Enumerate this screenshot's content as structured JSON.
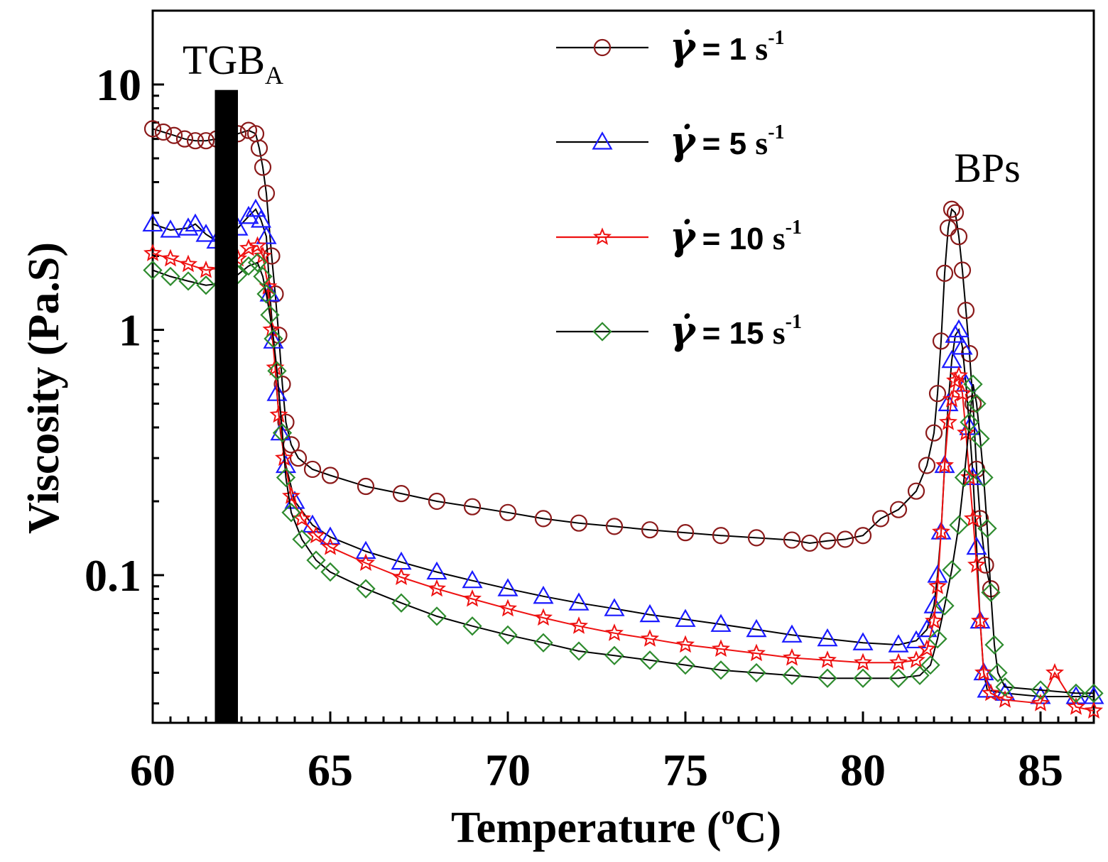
{
  "chart_data": {
    "type": "scatter",
    "title": "",
    "xlabel": "Temperature (",
    "xlabel_sup": "o",
    "xlabel_tail": "C)",
    "ylabel": "Viscosity (Pa.S)",
    "xlim": [
      60,
      86.5
    ],
    "ylim": [
      0.025,
      20
    ],
    "yscale": "log",
    "x_ticks": [
      60,
      65,
      70,
      75,
      80,
      85
    ],
    "x_tick_labels": [
      "60",
      "65",
      "70",
      "75",
      "80",
      "85"
    ],
    "y_ticks": [
      0.1,
      1,
      10
    ],
    "y_tick_labels": [
      "0.1",
      "1",
      "10"
    ],
    "grid": false,
    "legend_position": "top-right",
    "annotations": [
      {
        "text": "TGB",
        "subscript": "A",
        "x": 62.0
      },
      {
        "text": "BPs",
        "x": 83.5
      }
    ],
    "tgba_bar": {
      "x_from": 61.75,
      "x_to": 62.4,
      "y_top": 9.5
    },
    "series": [
      {
        "name": "γ̇ = 1 s⁻¹",
        "label_value": "= 1",
        "marker": "circle",
        "color": "#8b1a1a",
        "points": [
          [
            60,
            6.6
          ],
          [
            60.3,
            6.4
          ],
          [
            60.6,
            6.2
          ],
          [
            60.9,
            6.0
          ],
          [
            61.2,
            5.9
          ],
          [
            61.5,
            5.9
          ],
          [
            61.8,
            6.0
          ],
          [
            62.1,
            6.1
          ],
          [
            62.4,
            6.3
          ],
          [
            62.7,
            6.5
          ],
          [
            62.9,
            6.3
          ],
          [
            63.0,
            5.5
          ],
          [
            63.1,
            4.6
          ],
          [
            63.2,
            3.6
          ],
          [
            63.35,
            2.0
          ],
          [
            63.45,
            1.4
          ],
          [
            63.55,
            0.95
          ],
          [
            63.65,
            0.6
          ],
          [
            63.75,
            0.42
          ],
          [
            63.9,
            0.34
          ],
          [
            64.1,
            0.3
          ],
          [
            64.5,
            0.27
          ],
          [
            65,
            0.255
          ],
          [
            66,
            0.23
          ],
          [
            67,
            0.215
          ],
          [
            68,
            0.2
          ],
          [
            69,
            0.19
          ],
          [
            70,
            0.18
          ],
          [
            71,
            0.17
          ],
          [
            72,
            0.163
          ],
          [
            73,
            0.158
          ],
          [
            74,
            0.153
          ],
          [
            75,
            0.149
          ],
          [
            76,
            0.145
          ],
          [
            77,
            0.142
          ],
          [
            78,
            0.139
          ],
          [
            78.5,
            0.135
          ],
          [
            79,
            0.138
          ],
          [
            79.5,
            0.14
          ],
          [
            80,
            0.145
          ],
          [
            80.5,
            0.17
          ],
          [
            81,
            0.185
          ],
          [
            81.5,
            0.22
          ],
          [
            81.8,
            0.28
          ],
          [
            82.0,
            0.38
          ],
          [
            82.1,
            0.55
          ],
          [
            82.2,
            0.9
          ],
          [
            82.3,
            1.7
          ],
          [
            82.4,
            2.6
          ],
          [
            82.5,
            3.1
          ],
          [
            82.6,
            3.0
          ],
          [
            82.7,
            2.4
          ],
          [
            82.8,
            1.75
          ],
          [
            82.9,
            1.2
          ],
          [
            83.0,
            0.8
          ],
          [
            83.1,
            0.5
          ],
          [
            83.2,
            0.27
          ],
          [
            83.3,
            0.17
          ],
          [
            83.45,
            0.11
          ],
          [
            83.6,
            0.088
          ]
        ]
      },
      {
        "name": "γ̇ = 5 s⁻¹",
        "label_value": "= 5",
        "marker": "triangle",
        "color": "#1a1aff",
        "points": [
          [
            60,
            2.7
          ],
          [
            60.5,
            2.55
          ],
          [
            61,
            2.6
          ],
          [
            61.2,
            2.7
          ],
          [
            61.5,
            2.45
          ],
          [
            61.8,
            2.3
          ],
          [
            62.1,
            2.35
          ],
          [
            62.4,
            2.6
          ],
          [
            62.7,
            2.9
          ],
          [
            62.9,
            3.1
          ],
          [
            63.05,
            2.8
          ],
          [
            63.2,
            2.4
          ],
          [
            63.3,
            1.4
          ],
          [
            63.4,
            0.9
          ],
          [
            63.5,
            0.55
          ],
          [
            63.6,
            0.38
          ],
          [
            63.75,
            0.28
          ],
          [
            64,
            0.2
          ],
          [
            64.5,
            0.16
          ],
          [
            65,
            0.143
          ],
          [
            66,
            0.125
          ],
          [
            67,
            0.113
          ],
          [
            68,
            0.103
          ],
          [
            69,
            0.095
          ],
          [
            70,
            0.088
          ],
          [
            71,
            0.082
          ],
          [
            72,
            0.077
          ],
          [
            73,
            0.073
          ],
          [
            74,
            0.069
          ],
          [
            75,
            0.066
          ],
          [
            76,
            0.063
          ],
          [
            77,
            0.06
          ],
          [
            78,
            0.057
          ],
          [
            79,
            0.055
          ],
          [
            80,
            0.053
          ],
          [
            81,
            0.052
          ],
          [
            81.5,
            0.054
          ],
          [
            81.8,
            0.06
          ],
          [
            82.0,
            0.075
          ],
          [
            82.1,
            0.1
          ],
          [
            82.2,
            0.15
          ],
          [
            82.3,
            0.28
          ],
          [
            82.4,
            0.5
          ],
          [
            82.5,
            0.75
          ],
          [
            82.6,
            0.95
          ],
          [
            82.7,
            1.0
          ],
          [
            82.8,
            0.85
          ],
          [
            82.9,
            0.6
          ],
          [
            83.0,
            0.4
          ],
          [
            83.1,
            0.25
          ],
          [
            83.2,
            0.13
          ],
          [
            83.3,
            0.065
          ],
          [
            83.4,
            0.04
          ],
          [
            83.5,
            0.034
          ],
          [
            84,
            0.033
          ],
          [
            85,
            0.032
          ],
          [
            86,
            0.032
          ],
          [
            86.5,
            0.032
          ]
        ]
      },
      {
        "name": "γ̇ = 10 s⁻¹",
        "label_value": "= 10",
        "marker": "star",
        "color": "#ee1111",
        "points": [
          [
            60,
            2.05
          ],
          [
            60.5,
            1.95
          ],
          [
            61,
            1.85
          ],
          [
            61.5,
            1.75
          ],
          [
            62,
            1.8
          ],
          [
            62.4,
            1.95
          ],
          [
            62.7,
            2.15
          ],
          [
            62.95,
            2.2
          ],
          [
            63.1,
            2.0
          ],
          [
            63.25,
            1.5
          ],
          [
            63.35,
            1.0
          ],
          [
            63.45,
            0.7
          ],
          [
            63.55,
            0.45
          ],
          [
            63.7,
            0.3
          ],
          [
            63.9,
            0.21
          ],
          [
            64.2,
            0.17
          ],
          [
            64.6,
            0.145
          ],
          [
            65,
            0.13
          ],
          [
            66,
            0.112
          ],
          [
            67,
            0.098
          ],
          [
            68,
            0.088
          ],
          [
            69,
            0.08
          ],
          [
            70,
            0.073
          ],
          [
            71,
            0.067
          ],
          [
            72,
            0.062
          ],
          [
            73,
            0.058
          ],
          [
            74,
            0.055
          ],
          [
            75,
            0.052
          ],
          [
            76,
            0.05
          ],
          [
            77,
            0.048
          ],
          [
            78,
            0.046
          ],
          [
            79,
            0.045
          ],
          [
            80,
            0.044
          ],
          [
            81,
            0.044
          ],
          [
            81.5,
            0.045
          ],
          [
            81.8,
            0.05
          ],
          [
            82,
            0.065
          ],
          [
            82.1,
            0.09
          ],
          [
            82.2,
            0.15
          ],
          [
            82.3,
            0.28
          ],
          [
            82.4,
            0.42
          ],
          [
            82.5,
            0.52
          ],
          [
            82.6,
            0.62
          ],
          [
            82.7,
            0.65
          ],
          [
            82.8,
            0.55
          ],
          [
            82.9,
            0.38
          ],
          [
            83,
            0.25
          ],
          [
            83.1,
            0.17
          ],
          [
            83.2,
            0.11
          ],
          [
            83.3,
            0.065
          ],
          [
            83.4,
            0.04
          ],
          [
            83.6,
            0.033
          ],
          [
            84,
            0.031
          ],
          [
            85,
            0.03
          ],
          [
            85.4,
            0.04
          ],
          [
            86,
            0.029
          ],
          [
            86.5,
            0.028
          ]
        ]
      },
      {
        "name": "γ̇ = 15 s⁻¹",
        "label_value": "= 15",
        "marker": "diamond",
        "color": "#2e8b2e",
        "points": [
          [
            60,
            1.75
          ],
          [
            60.5,
            1.65
          ],
          [
            61,
            1.58
          ],
          [
            61.5,
            1.52
          ],
          [
            62,
            1.55
          ],
          [
            62.4,
            1.68
          ],
          [
            62.7,
            1.82
          ],
          [
            62.95,
            1.88
          ],
          [
            63.1,
            1.65
          ],
          [
            63.2,
            1.4
          ],
          [
            63.3,
            1.15
          ],
          [
            63.4,
            0.92
          ],
          [
            63.5,
            0.68
          ],
          [
            63.65,
            0.38
          ],
          [
            63.75,
            0.25
          ],
          [
            63.9,
            0.18
          ],
          [
            64.2,
            0.14
          ],
          [
            64.6,
            0.115
          ],
          [
            65,
            0.103
          ],
          [
            66,
            0.088
          ],
          [
            67,
            0.077
          ],
          [
            68,
            0.068
          ],
          [
            69,
            0.062
          ],
          [
            70,
            0.057
          ],
          [
            71,
            0.053
          ],
          [
            72,
            0.049
          ],
          [
            73,
            0.047
          ],
          [
            74,
            0.045
          ],
          [
            75,
            0.043
          ],
          [
            76,
            0.041
          ],
          [
            77,
            0.04
          ],
          [
            78,
            0.039
          ],
          [
            79,
            0.038
          ],
          [
            80,
            0.038
          ],
          [
            81,
            0.038
          ],
          [
            81.6,
            0.039
          ],
          [
            81.9,
            0.043
          ],
          [
            82.1,
            0.055
          ],
          [
            82.3,
            0.075
          ],
          [
            82.5,
            0.105
          ],
          [
            82.7,
            0.16
          ],
          [
            82.85,
            0.25
          ],
          [
            83.0,
            0.42
          ],
          [
            83.1,
            0.6
          ],
          [
            83.2,
            0.5
          ],
          [
            83.3,
            0.36
          ],
          [
            83.4,
            0.25
          ],
          [
            83.5,
            0.155
          ],
          [
            83.6,
            0.085
          ],
          [
            83.7,
            0.052
          ],
          [
            83.8,
            0.04
          ],
          [
            84,
            0.035
          ],
          [
            85,
            0.034
          ],
          [
            86,
            0.033
          ],
          [
            86.5,
            0.033
          ]
        ]
      }
    ]
  }
}
